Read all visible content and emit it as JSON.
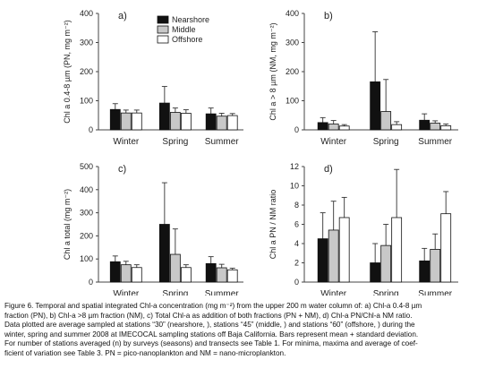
{
  "legend": [
    "Nearshore",
    "Middle",
    "Offshore"
  ],
  "colors": {
    "Nearshore": "#111111",
    "Middle": "#c8c8c8",
    "Offshore": "#ffffff"
  },
  "chart_data": [
    {
      "type": "bar",
      "panel_label": "a)",
      "ylabel": "Chl a 0.4-8 µm (PN, mg m⁻²)",
      "categories": [
        "Winter",
        "Spring",
        "Summer"
      ],
      "ylim": [
        0,
        400
      ],
      "yticks": [
        0,
        100,
        200,
        300,
        400
      ],
      "legend": "top-right",
      "series": [
        {
          "name": "Nearshore",
          "values": [
            70,
            92,
            55
          ],
          "errors": [
            20,
            57,
            20
          ]
        },
        {
          "name": "Middle",
          "values": [
            58,
            60,
            47
          ],
          "errors": [
            10,
            15,
            10
          ]
        },
        {
          "name": "Offshore",
          "values": [
            58,
            57,
            49
          ],
          "errors": [
            10,
            12,
            7
          ]
        }
      ]
    },
    {
      "type": "bar",
      "panel_label": "b)",
      "ylabel": "Chl a > 8 µm (NM, mg m⁻²)",
      "categories": [
        "Winter",
        "Spring",
        "Summer"
      ],
      "ylim": [
        0,
        400
      ],
      "yticks": [
        0,
        100,
        200,
        300,
        400
      ],
      "series": [
        {
          "name": "Nearshore",
          "values": [
            25,
            165,
            33
          ],
          "errors": [
            17,
            172,
            22
          ]
        },
        {
          "name": "Middle",
          "values": [
            20,
            63,
            23
          ],
          "errors": [
            12,
            110,
            8
          ]
        },
        {
          "name": "Offshore",
          "values": [
            13,
            18,
            14
          ],
          "errors": [
            5,
            10,
            6
          ]
        }
      ]
    },
    {
      "type": "bar",
      "panel_label": "c)",
      "ylabel": "Chl a total (mg m⁻²)",
      "categories": [
        "Winter",
        "Spring",
        "Summer"
      ],
      "ylim": [
        0,
        500
      ],
      "yticks": [
        0,
        100,
        200,
        300,
        400,
        500
      ],
      "series": [
        {
          "name": "Nearshore",
          "values": [
            88,
            250,
            80
          ],
          "errors": [
            25,
            180,
            30
          ]
        },
        {
          "name": "Middle",
          "values": [
            75,
            120,
            62
          ],
          "errors": [
            15,
            110,
            15
          ]
        },
        {
          "name": "Offshore",
          "values": [
            63,
            63,
            53
          ],
          "errors": [
            12,
            12,
            7
          ]
        }
      ]
    },
    {
      "type": "bar",
      "panel_label": "d)",
      "ylabel": "Chl a PN / NM ratio",
      "categories": [
        "Winter",
        "Spring",
        "Summer"
      ],
      "ylim": [
        0,
        12
      ],
      "yticks": [
        0,
        2,
        4,
        6,
        8,
        10,
        12
      ],
      "series": [
        {
          "name": "Nearshore",
          "values": [
            4.5,
            2.0,
            2.2
          ],
          "errors": [
            2.7,
            2.0,
            1.3
          ]
        },
        {
          "name": "Middle",
          "values": [
            5.4,
            3.8,
            3.4
          ],
          "errors": [
            3.0,
            2.2,
            1.6
          ]
        },
        {
          "name": "Offshore",
          "values": [
            6.7,
            6.7,
            7.1
          ],
          "errors": [
            2.1,
            5.0,
            2.3
          ]
        }
      ]
    }
  ],
  "caption": [
    "Figure 6. Temporal and spatial integrated Chl-a concentration (mg m⁻²) from the upper 200 m water column of: a) Chl-a 0.4-8 µm",
    "fraction (PN), b) Chl-a >8 µm fraction (NM), c) Total Chl-a as addition of both fractions (PN + NM), d) Chl-a PN/Chl-a NM ratio.",
    "Data plotted are average sampled at stations “30” (nearshore, ), stations “45” (middle, ) and stations “60” (offshore, ) during the",
    "winter, spring and summer 2008 at IMECOCAL sampling stations off Baja California. Bars represent mean + standard deviation.",
    "For number of stations averaged (n) by surveys (seasons) and transects see Table 1. For minima, maxima and average of coef-",
    "ficient of variation see Table 3. PN = pico-nanoplankton and NM = nano-microplankton."
  ]
}
